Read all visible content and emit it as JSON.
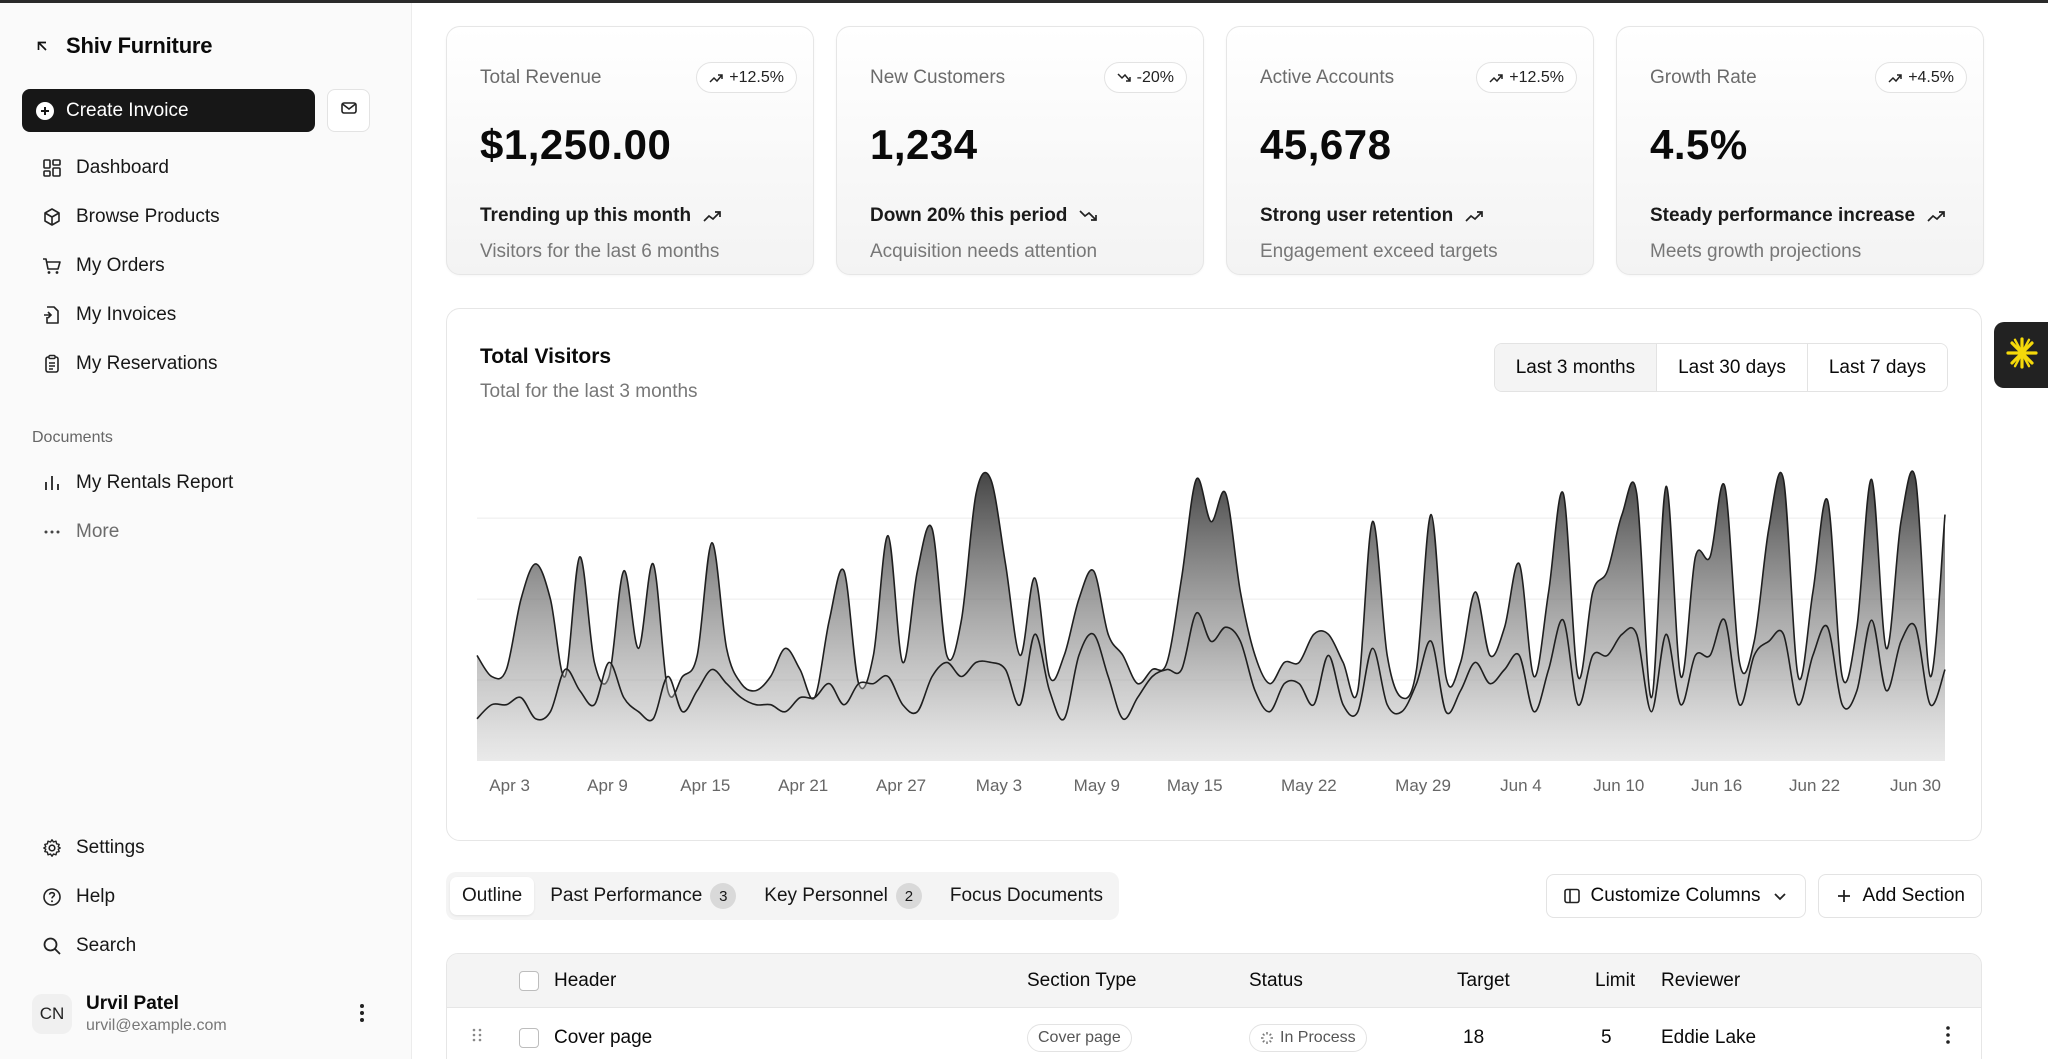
{
  "app": {
    "name": "Shiv Furniture"
  },
  "sidebar": {
    "create_label": "Create Invoice",
    "items": [
      {
        "label": "Dashboard",
        "icon": "dashboard-icon"
      },
      {
        "label": "Browse Products",
        "icon": "box-icon"
      },
      {
        "label": "My Orders",
        "icon": "cart-icon"
      },
      {
        "label": "My Invoices",
        "icon": "invoice-icon"
      },
      {
        "label": "My Reservations",
        "icon": "clipboard-icon"
      }
    ],
    "documents_label": "Documents",
    "documents": [
      {
        "label": "My Rentals Report",
        "icon": "bar-chart-icon"
      },
      {
        "label": "More",
        "icon": "more-icon"
      }
    ],
    "bottom": [
      {
        "label": "Settings",
        "icon": "gear-icon"
      },
      {
        "label": "Help",
        "icon": "help-icon"
      },
      {
        "label": "Search",
        "icon": "search-icon"
      }
    ],
    "user": {
      "initials": "CN",
      "name": "Urvil Patel",
      "email": "urvil@example.com"
    }
  },
  "cards": [
    {
      "label": "Total Revenue",
      "badge": "+12.5%",
      "badge_dir": "up",
      "value": "$1,250.00",
      "trend": "Trending up this month",
      "trend_dir": "up",
      "sub": "Visitors for the last 6 months"
    },
    {
      "label": "New Customers",
      "badge": "-20%",
      "badge_dir": "down",
      "value": "1,234",
      "trend": "Down 20% this period",
      "trend_dir": "down",
      "sub": "Acquisition needs attention"
    },
    {
      "label": "Active Accounts",
      "badge": "+12.5%",
      "badge_dir": "up",
      "value": "45,678",
      "trend": "Strong user retention",
      "trend_dir": "up",
      "sub": "Engagement exceed targets"
    },
    {
      "label": "Growth Rate",
      "badge": "+4.5%",
      "badge_dir": "up",
      "value": "4.5%",
      "trend": "Steady performance increase",
      "trend_dir": "up",
      "sub": "Meets growth projections"
    }
  ],
  "visitors": {
    "title": "Total Visitors",
    "subtitle": "Total for the last 3 months",
    "ranges": [
      "Last 3 months",
      "Last 30 days",
      "Last 7 days"
    ],
    "selected_range": "Last 3 months"
  },
  "chart_data": {
    "type": "area",
    "title": "Total Visitors",
    "x_tick_labels": [
      "Apr 3",
      "Apr 9",
      "Apr 15",
      "Apr 21",
      "Apr 27",
      "May 3",
      "May 9",
      "May 15",
      "May 22",
      "May 29",
      "Jun 4",
      "Jun 10",
      "Jun 16",
      "Jun 22",
      "Jun 30"
    ],
    "x_start": "Apr 1",
    "x_end": "Jun 30",
    "grid": true,
    "ylim": [
      0,
      500
    ],
    "series": [
      {
        "values": [
          150,
          120,
          130,
          230,
          280,
          230,
          120,
          290,
          140,
          120,
          270,
          160,
          280,
          100,
          120,
          150,
          310,
          160,
          110,
          100,
          120,
          160,
          130,
          90,
          200,
          270,
          110,
          150,
          320,
          140,
          270,
          330,
          150,
          200,
          380,
          400,
          280,
          150,
          260,
          120,
          150,
          230,
          270,
          180,
          150,
          110,
          130,
          140,
          260,
          400,
          340,
          380,
          240,
          150,
          110,
          140,
          140,
          180,
          180,
          140,
          100,
          340,
          150,
          90,
          130,
          350,
          120,
          140,
          240,
          150,
          190,
          280,
          120,
          240,
          380,
          120,
          240,
          270,
          350,
          380,
          90,
          390,
          120,
          290,
          290,
          390,
          140,
          170,
          330,
          400,
          120,
          240,
          370,
          120,
          190,
          400,
          160,
          340,
          400,
          120,
          350
        ]
      },
      {
        "values": [
          60,
          80,
          80,
          90,
          60,
          70,
          130,
          100,
          80,
          140,
          90,
          70,
          60,
          120,
          70,
          100,
          130,
          110,
          90,
          80,
          80,
          70,
          90,
          90,
          110,
          80,
          110,
          110,
          120,
          80,
          70,
          120,
          140,
          120,
          140,
          140,
          130,
          80,
          180,
          100,
          60,
          150,
          180,
          120,
          60,
          90,
          120,
          130,
          130,
          210,
          170,
          190,
          170,
          100,
          70,
          110,
          110,
          80,
          150,
          80,
          70,
          160,
          80,
          70,
          110,
          170,
          70,
          100,
          140,
          110,
          130,
          150,
          70,
          130,
          200,
          80,
          150,
          150,
          180,
          180,
          70,
          180,
          80,
          150,
          150,
          200,
          80,
          150,
          170,
          180,
          80,
          150,
          190,
          80,
          100,
          200,
          100,
          170,
          190,
          80,
          130
        ]
      }
    ]
  },
  "tabs": [
    {
      "label": "Outline",
      "count": ""
    },
    {
      "label": "Past Performance",
      "count": "3"
    },
    {
      "label": "Key Personnel",
      "count": "2"
    },
    {
      "label": "Focus Documents",
      "count": ""
    }
  ],
  "actions": {
    "customize": "Customize Columns",
    "add_section": "Add Section"
  },
  "table": {
    "headers": {
      "header": "Header",
      "section_type": "Section Type",
      "status": "Status",
      "target": "Target",
      "limit": "Limit",
      "reviewer": "Reviewer"
    },
    "rows": [
      {
        "header": "Cover page",
        "section_type": "Cover page",
        "status": "In Process",
        "target": "18",
        "limit": "5",
        "reviewer": "Eddie Lake"
      }
    ]
  }
}
